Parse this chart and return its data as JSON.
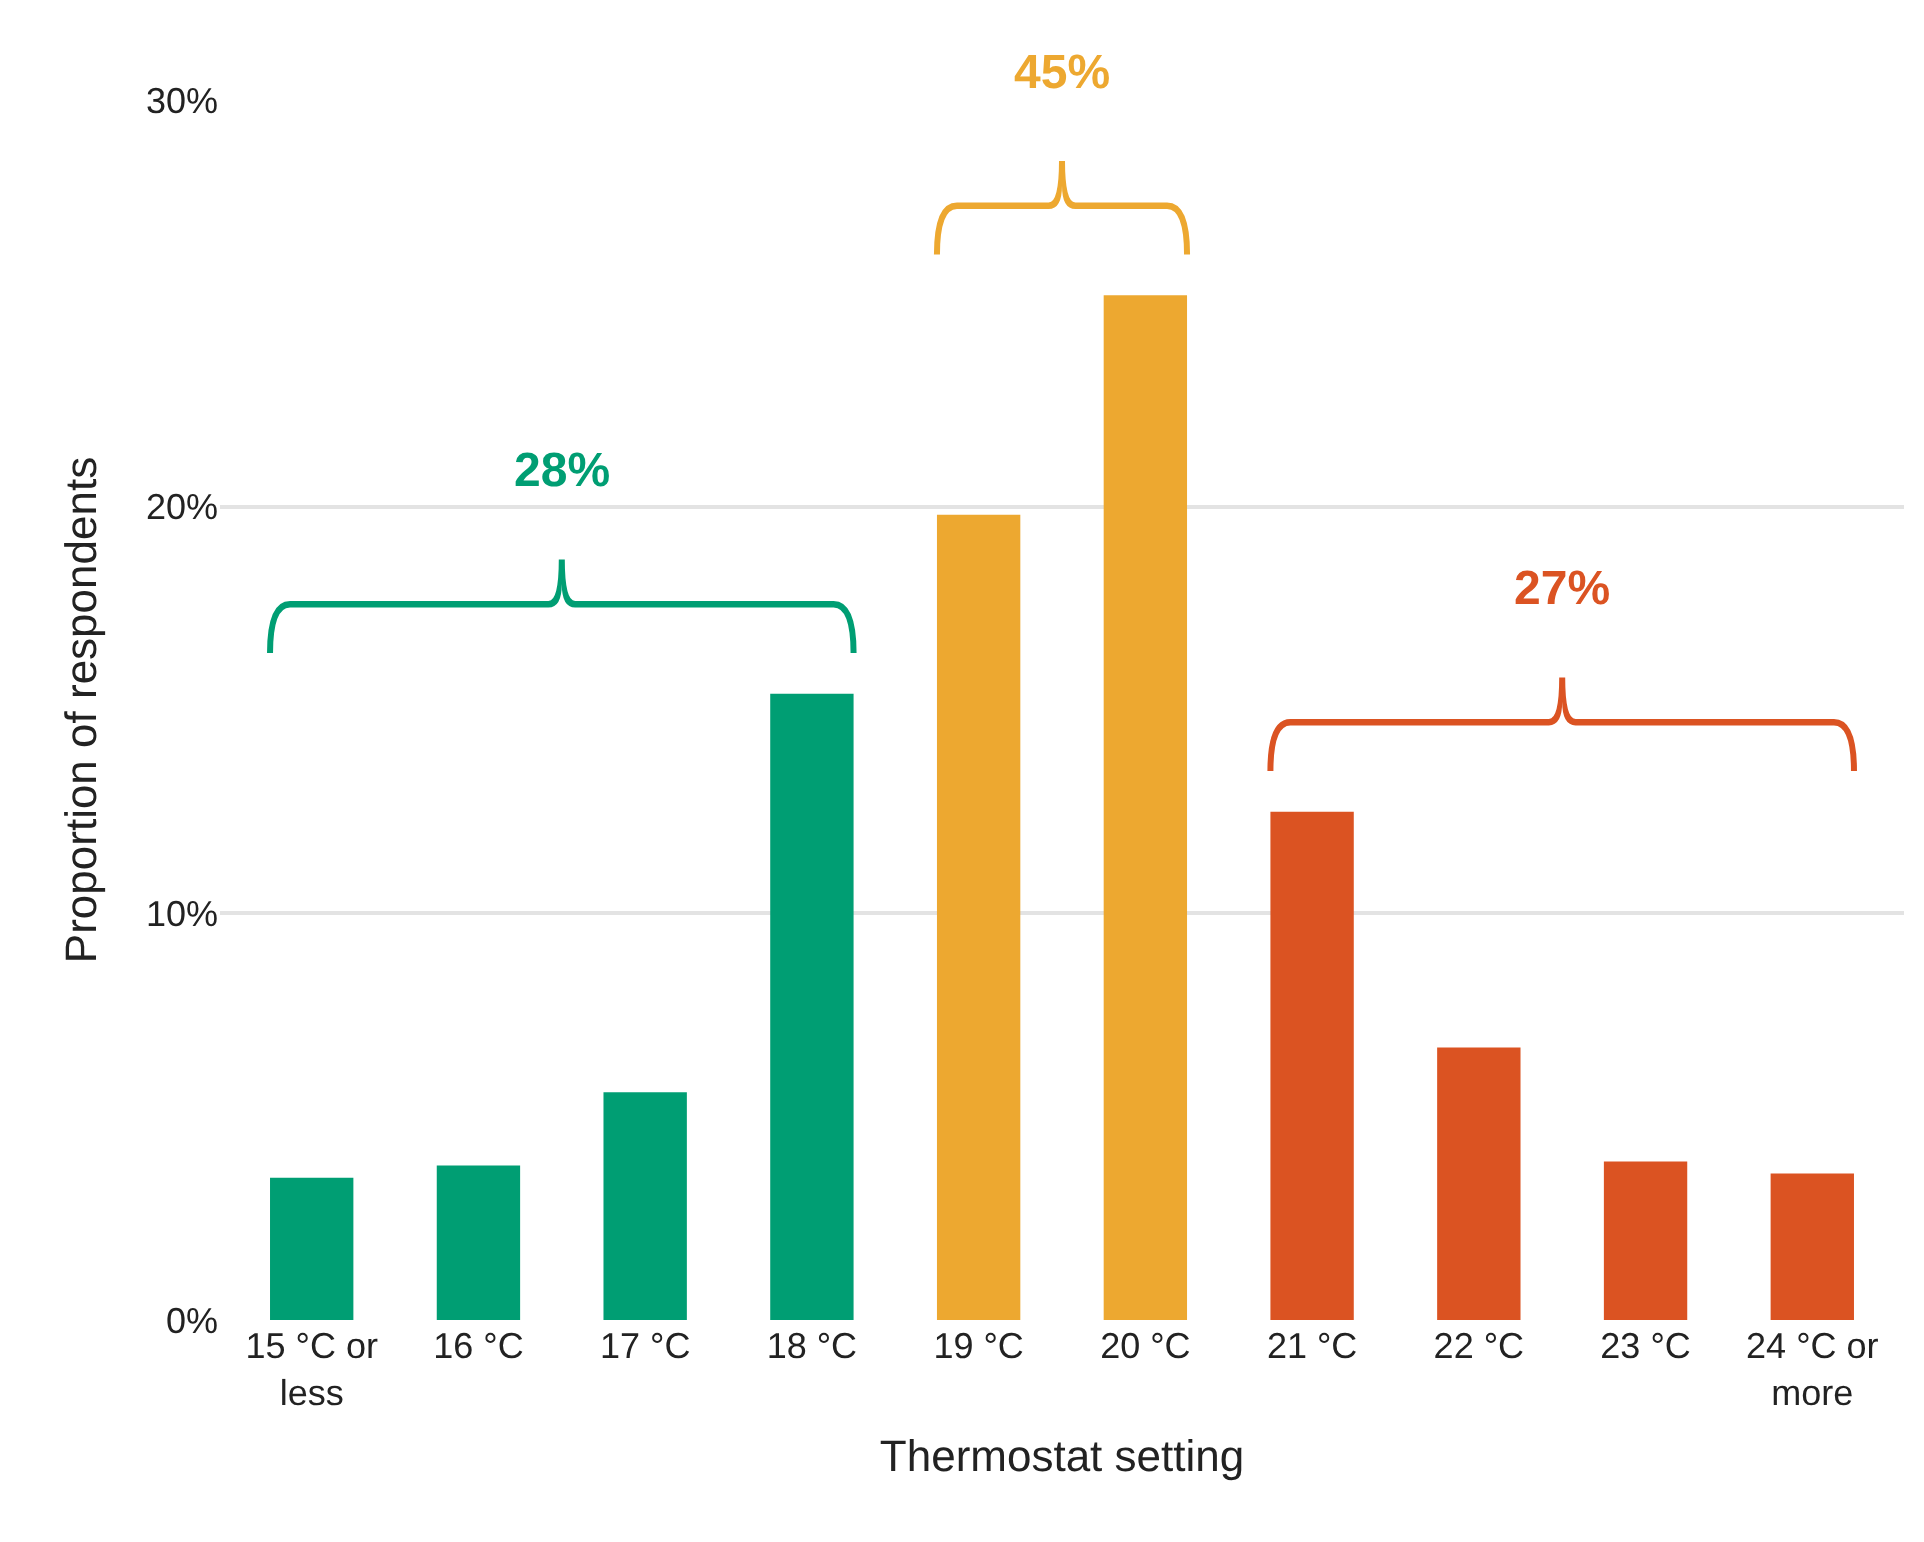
{
  "chart_data": {
    "type": "bar",
    "xlabel": "Thermostat setting",
    "ylabel": "Proportion of respondents",
    "categories": [
      "15 °C or less",
      "16 °C",
      "17 °C",
      "18 °C",
      "19 °C",
      "20 °C",
      "21 °C",
      "22 °C",
      "23 °C",
      "24 °C or more"
    ],
    "values": [
      3.5,
      3.8,
      5.6,
      15.4,
      19.8,
      25.2,
      12.5,
      6.7,
      3.9,
      3.6
    ],
    "colors": [
      "#009e73",
      "#009e73",
      "#009e73",
      "#009e73",
      "#eda830",
      "#eda830",
      "#db5322",
      "#db5322",
      "#db5322",
      "#db5322"
    ],
    "ylim": [
      0,
      30
    ],
    "yticks": [
      {
        "value": 0,
        "label": "0%"
      },
      {
        "value": 10,
        "label": "10%"
      },
      {
        "value": 20,
        "label": "20%"
      },
      {
        "value": 30,
        "label": "30%"
      }
    ],
    "grid": "y",
    "legend": false,
    "annotations": [
      "28%",
      "45%",
      "27%"
    ]
  }
}
